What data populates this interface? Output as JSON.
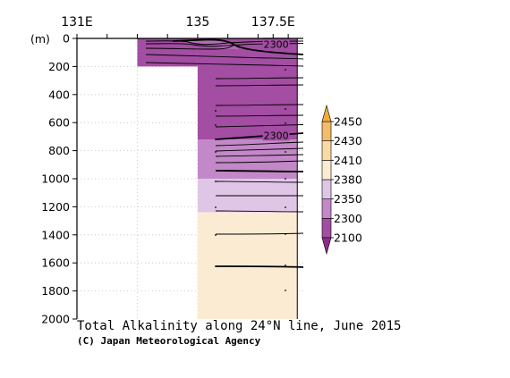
{
  "chart_data": {
    "type": "heatmap",
    "title": "Total Alkalinity along 24°N line, June 2015",
    "credit": "(C) Japan Meteorological Agency",
    "x_axis": {
      "range": [
        131,
        138.5
      ],
      "ticks": [
        131,
        132,
        133,
        134,
        135,
        136,
        137,
        137.5,
        138
      ],
      "tick_labels": [
        {
          "value": 131,
          "text": "131E"
        },
        {
          "value": 135,
          "text": "135"
        },
        {
          "value": 137.5,
          "text": "137.5E"
        }
      ]
    },
    "y_axis": {
      "unit_label": "(m)",
      "range": [
        0,
        2000
      ],
      "ticks": [
        0,
        200,
        400,
        600,
        800,
        1000,
        1200,
        1400,
        1600,
        1800,
        2000
      ],
      "inverted": true
    },
    "data_extent": {
      "lon_max": 138.3,
      "shallow_section": {
        "lon_start": 133,
        "depth_max": 200
      },
      "deep_section": {
        "lon_start": 135,
        "depth_max": 2000
      }
    },
    "colorbar": {
      "levels": [
        "2450",
        "2430",
        "2410",
        "2380",
        "2350",
        "2300",
        "2100"
      ],
      "bands": [
        {
          "min": 2100,
          "max": 2300,
          "color": "#a34da3"
        },
        {
          "min": 2300,
          "max": 2350,
          "color": "#c388c8"
        },
        {
          "min": 2350,
          "max": 2380,
          "color": "#e0c6e6"
        },
        {
          "min": 2380,
          "max": 2410,
          "color": "#fbebd3"
        },
        {
          "min": 2410,
          "max": 2430,
          "color": "#f8d9a8"
        },
        {
          "min": 2430,
          "max": 2450,
          "color": "#f2bc6c"
        }
      ],
      "under_color": "#8b2c8b",
      "over_color": "#f0ac3c"
    },
    "field_bands": [
      {
        "depth_top": 0,
        "depth_bottom": 720,
        "color": "#a34da3"
      },
      {
        "depth_top": 720,
        "depth_bottom": 1000,
        "color": "#c388c8"
      },
      {
        "depth_top": 1000,
        "depth_bottom": 1240,
        "color": "#e0c6e6"
      },
      {
        "depth_top": 1240,
        "depth_bottom": 2000,
        "color": "#fbebd3"
      }
    ],
    "contour_labels": [
      {
        "text": "2300",
        "lon": 137.6,
        "depth": 40
      },
      {
        "text": "2300",
        "lon": 137.6,
        "depth": 690
      }
    ]
  }
}
